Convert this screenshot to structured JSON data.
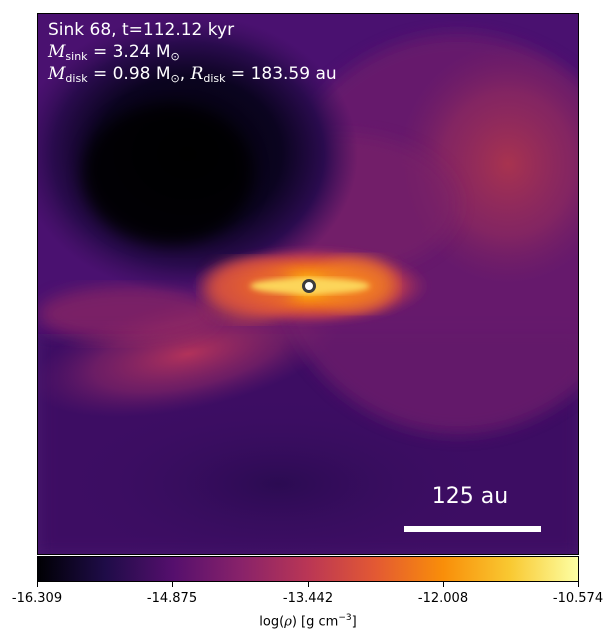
{
  "annotations": {
    "line1": "Sink 68, t=112.12 kyr",
    "m_sink_symbol": "M",
    "m_sink_sub": "sink",
    "m_sink_value": " = 3.24 M",
    "m_disk_symbol": "M",
    "m_disk_sub": "disk",
    "m_disk_value": " = 0.98 M",
    "r_disk_symbol": "R",
    "r_disk_sub": "disk",
    "r_disk_value": " = 183.59 au",
    "sun_sub": "⊙"
  },
  "scale_bar": {
    "label": "125 au"
  },
  "colorbar": {
    "ticks": [
      "-16.309",
      "-14.875",
      "-13.442",
      "-12.008",
      "-10.574"
    ],
    "label_prefix": "log(",
    "label_rho": "ρ",
    "label_suffix": ") [g cm",
    "label_exp": "−3",
    "label_end": "]",
    "colormap": "inferno",
    "colors": [
      "#000004",
      "#1f0c48",
      "#550f6d",
      "#88226a",
      "#ba3655",
      "#e35933",
      "#f98e09",
      "#f9c932",
      "#fcffa4"
    ]
  }
}
